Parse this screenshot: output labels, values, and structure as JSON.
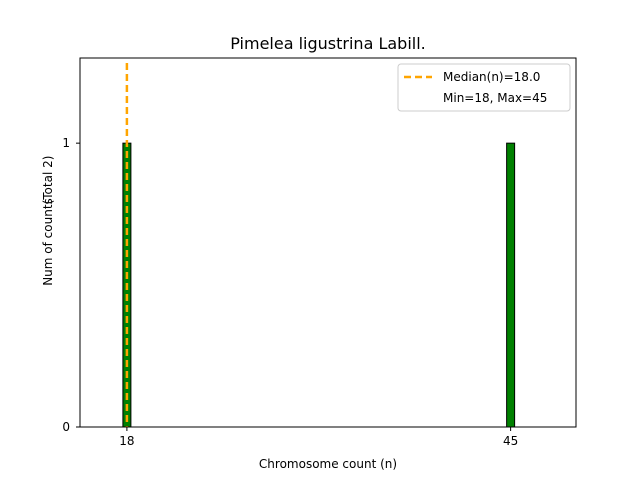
{
  "chart_data": {
    "type": "bar",
    "title": "Pimelea ligustrina Labill.",
    "xlabel": "Chromosome count (n)",
    "ylabel": "Num of counts",
    "ylabel_note": "(Total 2)",
    "x": [
      18,
      45
    ],
    "values": [
      1,
      1
    ],
    "xlim": [
      14.7,
      49.6
    ],
    "ylim": [
      0,
      1.3
    ],
    "xticks": [
      18,
      45
    ],
    "yticks": [
      0,
      1
    ],
    "median": 18.0,
    "legend": {
      "placement": "top-right",
      "entries": [
        "Median(n)=18.0",
        "Min=18, Max=45"
      ]
    },
    "colors": {
      "bar_fill": "#008000",
      "bar_edge": "#000000",
      "median_line": "#ffa500"
    },
    "grid": false
  }
}
